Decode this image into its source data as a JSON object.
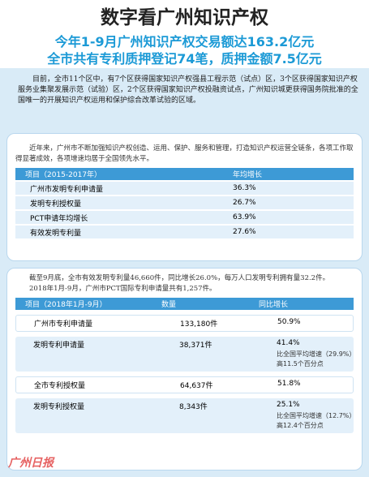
{
  "header": {
    "title": "数字看广州知识产权",
    "subtitle": [
      "今年1-9月广州知识产权交易额达163.2亿元",
      "全市共有专利质押登记74笔，质押金额7.5亿元"
    ]
  },
  "intro": "目前，全市11个区中，有7个区获得国家知识产权强县工程示范（试点）区，3个区获得国家知识产权服务业集聚发展示范（试验）区，2个区获得国家知识产权投融资试点，广州知识城更获得国务院批准的全国唯一的开展知识产权运用和保护综合改革试验的区域。",
  "section1": {
    "text": "近年来，广州市不断加强知识产权创造、运用、保护、服务和管理，打造知识产权运营全链条，各项工作取得显著成效，各项增速均居于全国领先水平。",
    "table": {
      "columns": [
        "项目（2015-2017年）",
        "年均增长"
      ],
      "rows": [
        [
          "广州市发明专利申请量",
          "36.3%"
        ],
        [
          "发明专利授权量",
          "26.7%"
        ],
        [
          "PCT申请年均增长",
          "63.9%"
        ],
        [
          "有效发明专利量",
          "27.6%"
        ]
      ]
    }
  },
  "section2": {
    "paragraphs": [
      "截至9月底，全市有效发明专利量46,660件，同比增长26.0%，每万人口发明专利拥有量32.2件。",
      "2018年1月-9月，广州市PCT国际专利申请量共有1,257件。"
    ],
    "table": {
      "columns": [
        "项目（2018年1月-9月）",
        "数量",
        "同比增长"
      ],
      "rows": [
        {
          "item": "广州市专利申请量",
          "count": "133,180件",
          "growth": "50.9%"
        },
        {
          "item": "发明专利申请量",
          "count": "38,371件",
          "growth": "41.4%",
          "note": "比全国平均增速（29.9%）高11.5个百分点"
        },
        {
          "item": "全市专利授权量",
          "count": "64,637件",
          "growth": "51.8%"
        },
        {
          "item": "发明专利授权量",
          "count": "8,343件",
          "growth": "25.1%",
          "note": "比全国平均增速（12.7%）高12.4个百分点"
        }
      ]
    }
  },
  "watermark": "广州日报"
}
